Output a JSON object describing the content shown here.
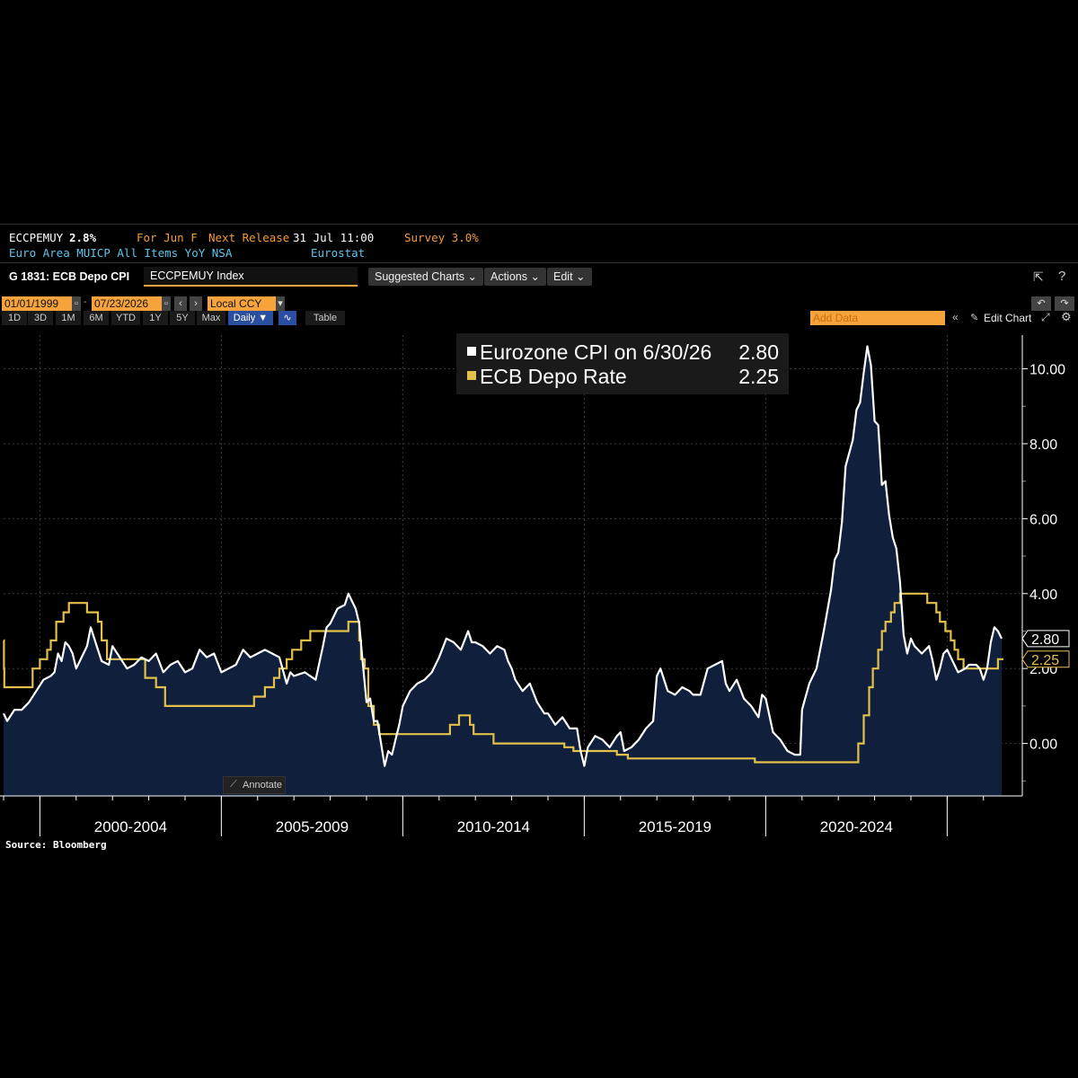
{
  "header": {
    "ticker": "ECCPEMUY",
    "value": "2.8%",
    "for_label": "For Jun F",
    "next_release_label": "Next Release",
    "next_release_time": "31 Jul 11:00",
    "survey": "Survey 3.0%",
    "description": "Euro Area MUICP All Items YoY NSA",
    "source_name": "Eurostat"
  },
  "toolbar": {
    "chart_id": "G 1831: ECB Depo CPI",
    "security": "ECCPEMUY Index",
    "suggested_charts": "Suggested Charts",
    "actions": "Actions",
    "edit": "Edit",
    "start_date": "01/01/1999",
    "end_date": "07/23/2026",
    "currency": "Local CCY",
    "periods": [
      "1D",
      "3D",
      "1M",
      "6M",
      "YTD",
      "1Y",
      "5Y",
      "Max"
    ],
    "frequency": "Daily ▼",
    "table": "Table",
    "add_data_placeholder": "Add Data",
    "edit_chart": "Edit Chart",
    "annotate": "Annotate"
  },
  "colors": {
    "cpi": "#ffffff",
    "depo": "#e3c04a",
    "fill": "#0f1f3c",
    "grid": "#3a3a3a",
    "accent_orange": "#f5a33a"
  },
  "chart_data": {
    "type": "line",
    "xlim": [
      1999.0,
      2026.55
    ],
    "ylim": [
      -1.4,
      10.9
    ],
    "yticks": [
      0,
      2,
      4,
      6,
      8,
      10
    ],
    "ytick_labels": [
      "0.00",
      "2.00",
      "4.00",
      "6.00",
      "8.00",
      "10.00"
    ],
    "period_bands": [
      {
        "label": "2000-2004",
        "from": 2000,
        "to": 2005
      },
      {
        "label": "2005-2009",
        "from": 2005,
        "to": 2010
      },
      {
        "label": "2010-2014",
        "from": 2010,
        "to": 2015
      },
      {
        "label": "2015-2019",
        "from": 2015,
        "to": 2020
      },
      {
        "label": "2020-2024",
        "from": 2020,
        "to": 2025
      }
    ],
    "legend": {
      "placement": "top-center",
      "entries": [
        {
          "name": "Eurozone CPI on 6/30/26",
          "value": "2.80"
        },
        {
          "name": "ECB Depo Rate",
          "value": "2.25"
        }
      ]
    },
    "last_values": {
      "cpi": "2.80",
      "depo": "2.25"
    },
    "series": [
      {
        "name": "Eurozone CPI on 6/30/26",
        "kind": "area",
        "points": [
          [
            1999.0,
            0.8
          ],
          [
            1999.1,
            0.6
          ],
          [
            1999.3,
            0.9
          ],
          [
            1999.5,
            0.9
          ],
          [
            1999.7,
            1.1
          ],
          [
            1999.9,
            1.4
          ],
          [
            2000.1,
            1.7
          ],
          [
            2000.3,
            1.8
          ],
          [
            2000.4,
            1.9
          ],
          [
            2000.5,
            2.4
          ],
          [
            2000.6,
            2.2
          ],
          [
            2000.7,
            2.7
          ],
          [
            2000.8,
            2.6
          ],
          [
            2000.9,
            2.4
          ],
          [
            2001.0,
            2.0
          ],
          [
            2001.2,
            2.4
          ],
          [
            2001.3,
            2.6
          ],
          [
            2001.4,
            3.1
          ],
          [
            2001.5,
            2.8
          ],
          [
            2001.6,
            2.5
          ],
          [
            2001.7,
            2.2
          ],
          [
            2001.9,
            2.1
          ],
          [
            2002.0,
            2.6
          ],
          [
            2002.2,
            2.3
          ],
          [
            2002.4,
            2.0
          ],
          [
            2002.6,
            2.1
          ],
          [
            2002.8,
            2.3
          ],
          [
            2003.0,
            2.2
          ],
          [
            2003.2,
            2.4
          ],
          [
            2003.4,
            1.9
          ],
          [
            2003.6,
            2.1
          ],
          [
            2003.8,
            2.2
          ],
          [
            2004.0,
            1.9
          ],
          [
            2004.2,
            2.0
          ],
          [
            2004.4,
            2.5
          ],
          [
            2004.6,
            2.3
          ],
          [
            2004.8,
            2.4
          ],
          [
            2005.0,
            1.9
          ],
          [
            2005.2,
            2.0
          ],
          [
            2005.4,
            2.1
          ],
          [
            2005.6,
            2.5
          ],
          [
            2005.8,
            2.3
          ],
          [
            2006.0,
            2.4
          ],
          [
            2006.2,
            2.5
          ],
          [
            2006.4,
            2.4
          ],
          [
            2006.6,
            2.3
          ],
          [
            2006.8,
            1.6
          ],
          [
            2006.9,
            1.9
          ],
          [
            2007.0,
            1.8
          ],
          [
            2007.3,
            1.9
          ],
          [
            2007.6,
            1.7
          ],
          [
            2007.8,
            2.6
          ],
          [
            2007.9,
            3.1
          ],
          [
            2008.0,
            3.2
          ],
          [
            2008.2,
            3.6
          ],
          [
            2008.4,
            3.7
          ],
          [
            2008.5,
            4.0
          ],
          [
            2008.6,
            3.8
          ],
          [
            2008.7,
            3.6
          ],
          [
            2008.8,
            3.2
          ],
          [
            2008.9,
            2.1
          ],
          [
            2009.0,
            1.1
          ],
          [
            2009.1,
            1.2
          ],
          [
            2009.2,
            0.6
          ],
          [
            2009.3,
            0.6
          ],
          [
            2009.4,
            0.0
          ],
          [
            2009.5,
            -0.6
          ],
          [
            2009.6,
            -0.2
          ],
          [
            2009.7,
            -0.3
          ],
          [
            2009.8,
            0.1
          ],
          [
            2009.9,
            0.5
          ],
          [
            2010.0,
            1.0
          ],
          [
            2010.2,
            1.4
          ],
          [
            2010.4,
            1.6
          ],
          [
            2010.6,
            1.7
          ],
          [
            2010.8,
            1.9
          ],
          [
            2011.0,
            2.3
          ],
          [
            2011.2,
            2.8
          ],
          [
            2011.4,
            2.7
          ],
          [
            2011.6,
            2.5
          ],
          [
            2011.8,
            3.0
          ],
          [
            2011.9,
            2.7
          ],
          [
            2012.0,
            2.7
          ],
          [
            2012.2,
            2.6
          ],
          [
            2012.4,
            2.4
          ],
          [
            2012.6,
            2.6
          ],
          [
            2012.8,
            2.5
          ],
          [
            2012.9,
            2.2
          ],
          [
            2013.0,
            2.0
          ],
          [
            2013.1,
            1.7
          ],
          [
            2013.3,
            1.4
          ],
          [
            2013.5,
            1.6
          ],
          [
            2013.7,
            1.1
          ],
          [
            2013.9,
            0.8
          ],
          [
            2014.0,
            0.8
          ],
          [
            2014.2,
            0.5
          ],
          [
            2014.4,
            0.7
          ],
          [
            2014.6,
            0.4
          ],
          [
            2014.8,
            0.4
          ],
          [
            2014.9,
            -0.2
          ],
          [
            2015.0,
            -0.6
          ],
          [
            2015.1,
            -0.1
          ],
          [
            2015.3,
            0.2
          ],
          [
            2015.5,
            0.1
          ],
          [
            2015.7,
            -0.1
          ],
          [
            2015.9,
            0.2
          ],
          [
            2016.0,
            0.3
          ],
          [
            2016.1,
            -0.2
          ],
          [
            2016.3,
            -0.1
          ],
          [
            2016.5,
            0.1
          ],
          [
            2016.7,
            0.4
          ],
          [
            2016.9,
            0.6
          ],
          [
            2017.0,
            1.8
          ],
          [
            2017.1,
            2.0
          ],
          [
            2017.3,
            1.4
          ],
          [
            2017.5,
            1.3
          ],
          [
            2017.7,
            1.5
          ],
          [
            2017.9,
            1.4
          ],
          [
            2018.0,
            1.3
          ],
          [
            2018.2,
            1.3
          ],
          [
            2018.4,
            2.0
          ],
          [
            2018.6,
            2.1
          ],
          [
            2018.8,
            2.2
          ],
          [
            2018.9,
            1.6
          ],
          [
            2019.0,
            1.4
          ],
          [
            2019.2,
            1.7
          ],
          [
            2019.4,
            1.2
          ],
          [
            2019.6,
            1.0
          ],
          [
            2019.8,
            0.7
          ],
          [
            2019.9,
            1.3
          ],
          [
            2020.0,
            1.2
          ],
          [
            2020.2,
            0.3
          ],
          [
            2020.4,
            0.1
          ],
          [
            2020.6,
            -0.2
          ],
          [
            2020.8,
            -0.3
          ],
          [
            2020.95,
            -0.3
          ],
          [
            2021.0,
            0.9
          ],
          [
            2021.2,
            1.6
          ],
          [
            2021.4,
            2.0
          ],
          [
            2021.6,
            3.0
          ],
          [
            2021.8,
            4.1
          ],
          [
            2021.9,
            4.9
          ],
          [
            2022.0,
            5.1
          ],
          [
            2022.1,
            5.9
          ],
          [
            2022.2,
            7.4
          ],
          [
            2022.4,
            8.1
          ],
          [
            2022.5,
            8.9
          ],
          [
            2022.6,
            9.1
          ],
          [
            2022.7,
            9.9
          ],
          [
            2022.8,
            10.6
          ],
          [
            2022.9,
            10.1
          ],
          [
            2023.0,
            8.6
          ],
          [
            2023.1,
            8.5
          ],
          [
            2023.2,
            6.9
          ],
          [
            2023.3,
            7.0
          ],
          [
            2023.4,
            6.1
          ],
          [
            2023.5,
            5.5
          ],
          [
            2023.6,
            5.2
          ],
          [
            2023.7,
            4.3
          ],
          [
            2023.8,
            2.9
          ],
          [
            2023.9,
            2.4
          ],
          [
            2024.0,
            2.8
          ],
          [
            2024.1,
            2.6
          ],
          [
            2024.3,
            2.4
          ],
          [
            2024.5,
            2.6
          ],
          [
            2024.6,
            2.2
          ],
          [
            2024.7,
            1.7
          ],
          [
            2024.8,
            2.0
          ],
          [
            2024.9,
            2.4
          ],
          [
            2025.0,
            2.5
          ],
          [
            2025.1,
            2.3
          ],
          [
            2025.3,
            1.9
          ],
          [
            2025.5,
            2.0
          ],
          [
            2025.6,
            2.1
          ],
          [
            2025.8,
            2.1
          ],
          [
            2025.9,
            2.0
          ],
          [
            2026.0,
            1.7
          ],
          [
            2026.1,
            2.0
          ],
          [
            2026.2,
            2.7
          ],
          [
            2026.3,
            3.1
          ],
          [
            2026.4,
            3.0
          ],
          [
            2026.5,
            2.8
          ]
        ]
      },
      {
        "name": "ECB Depo Rate",
        "kind": "step",
        "points": [
          [
            1999.0,
            2.75
          ],
          [
            1999.01,
            2.0
          ],
          [
            1999.02,
            1.5
          ],
          [
            1999.3,
            1.5
          ],
          [
            1999.8,
            2.0
          ],
          [
            2000.0,
            2.25
          ],
          [
            2000.2,
            2.5
          ],
          [
            2000.3,
            2.75
          ],
          [
            2000.45,
            3.25
          ],
          [
            2000.65,
            3.5
          ],
          [
            2000.8,
            3.75
          ],
          [
            2001.3,
            3.5
          ],
          [
            2001.6,
            3.25
          ],
          [
            2001.7,
            2.75
          ],
          [
            2001.85,
            2.25
          ],
          [
            2002.9,
            1.75
          ],
          [
            2003.2,
            1.5
          ],
          [
            2003.45,
            1.0
          ],
          [
            2005.9,
            1.25
          ],
          [
            2006.2,
            1.5
          ],
          [
            2006.45,
            1.75
          ],
          [
            2006.6,
            2.0
          ],
          [
            2006.8,
            2.25
          ],
          [
            2006.95,
            2.5
          ],
          [
            2007.2,
            2.75
          ],
          [
            2007.45,
            3.0
          ],
          [
            2008.5,
            3.25
          ],
          [
            2008.8,
            2.75
          ],
          [
            2008.85,
            2.25
          ],
          [
            2008.95,
            2.0
          ],
          [
            2009.05,
            1.0
          ],
          [
            2009.2,
            0.5
          ],
          [
            2009.35,
            0.25
          ],
          [
            2011.3,
            0.5
          ],
          [
            2011.55,
            0.75
          ],
          [
            2011.85,
            0.5
          ],
          [
            2011.95,
            0.25
          ],
          [
            2012.5,
            0.0
          ],
          [
            2014.45,
            -0.1
          ],
          [
            2014.7,
            -0.2
          ],
          [
            2015.9,
            -0.3
          ],
          [
            2016.2,
            -0.4
          ],
          [
            2019.7,
            -0.5
          ],
          [
            2022.55,
            0.0
          ],
          [
            2022.7,
            0.75
          ],
          [
            2022.85,
            1.5
          ],
          [
            2022.95,
            2.0
          ],
          [
            2023.1,
            2.5
          ],
          [
            2023.2,
            3.0
          ],
          [
            2023.3,
            3.25
          ],
          [
            2023.45,
            3.5
          ],
          [
            2023.55,
            3.75
          ],
          [
            2023.7,
            4.0
          ],
          [
            2024.45,
            3.75
          ],
          [
            2024.7,
            3.5
          ],
          [
            2024.8,
            3.25
          ],
          [
            2024.95,
            3.0
          ],
          [
            2025.1,
            2.75
          ],
          [
            2025.2,
            2.5
          ],
          [
            2025.3,
            2.25
          ],
          [
            2025.45,
            2.0
          ],
          [
            2026.35,
            2.0
          ],
          [
            2026.4,
            2.25
          ],
          [
            2026.55,
            2.25
          ]
        ]
      }
    ],
    "source_label": "Source: Bloomberg"
  }
}
